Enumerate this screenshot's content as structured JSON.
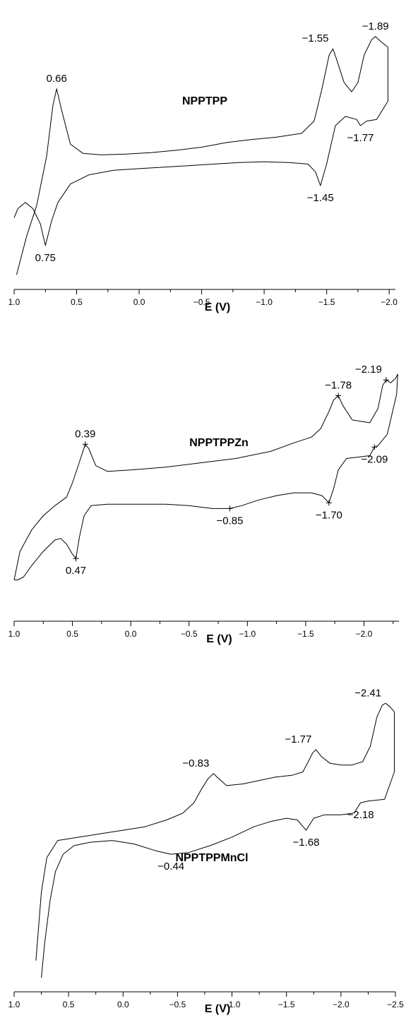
{
  "chart_data": [
    {
      "type": "line",
      "title": "NPPTPP",
      "xlabel": "E (V)",
      "ylabel": "",
      "xlim": [
        1.0,
        -2.05
      ],
      "x_reversed": true,
      "xticks": [
        1.0,
        0.5,
        0.0,
        -0.5,
        -1.0,
        -1.5,
        -2.0
      ],
      "xtick_labels": [
        "1.0",
        "0.5",
        "0.0",
        "−0.5",
        "−1.0",
        "−1.5",
        "−2.0"
      ],
      "show_markers": false,
      "series": [
        {
          "values": [
            [
              0.98,
              -0.55
            ],
            [
              0.9,
              -0.3
            ],
            [
              0.82,
              -0.1
            ],
            [
              0.74,
              0.22
            ],
            [
              0.69,
              0.55
            ],
            [
              0.66,
              0.66
            ],
            [
              0.62,
              0.52
            ],
            [
              0.55,
              0.3
            ],
            [
              0.45,
              0.24
            ],
            [
              0.3,
              0.23
            ],
            [
              0.1,
              0.235
            ],
            [
              -0.1,
              0.245
            ],
            [
              -0.3,
              0.26
            ],
            [
              -0.5,
              0.28
            ],
            [
              -0.7,
              0.31
            ],
            [
              -0.9,
              0.33
            ],
            [
              -1.1,
              0.345
            ],
            [
              -1.3,
              0.37
            ],
            [
              -1.4,
              0.45
            ],
            [
              -1.46,
              0.65
            ],
            [
              -1.52,
              0.88
            ],
            [
              -1.55,
              0.92
            ],
            [
              -1.58,
              0.85
            ],
            [
              -1.64,
              0.7
            ],
            [
              -1.7,
              0.64
            ],
            [
              -1.75,
              0.7
            ],
            [
              -1.8,
              0.88
            ],
            [
              -1.86,
              0.98
            ],
            [
              -1.89,
              1.0
            ],
            [
              -1.93,
              0.97
            ],
            [
              -1.99,
              0.93
            ],
            [
              -1.99,
              0.58
            ],
            [
              -1.9,
              0.46
            ],
            [
              -1.82,
              0.45
            ],
            [
              -1.77,
              0.42
            ],
            [
              -1.74,
              0.46
            ],
            [
              -1.65,
              0.48
            ],
            [
              -1.57,
              0.42
            ],
            [
              -1.5,
              0.17
            ],
            [
              -1.45,
              0.03
            ],
            [
              -1.41,
              0.12
            ],
            [
              -1.35,
              0.17
            ],
            [
              -1.2,
              0.18
            ],
            [
              -1.0,
              0.185
            ],
            [
              -0.8,
              0.18
            ],
            [
              -0.6,
              0.17
            ],
            [
              -0.4,
              0.16
            ],
            [
              -0.2,
              0.15
            ],
            [
              0.0,
              0.14
            ],
            [
              0.2,
              0.13
            ],
            [
              0.4,
              0.1
            ],
            [
              0.55,
              0.04
            ],
            [
              0.65,
              -0.08
            ],
            [
              0.7,
              -0.2
            ],
            [
              0.75,
              -0.36
            ],
            [
              0.79,
              -0.22
            ],
            [
              0.85,
              -0.12
            ],
            [
              0.91,
              -0.08
            ],
            [
              0.97,
              -0.12
            ],
            [
              1.0,
              -0.18
            ]
          ]
        }
      ],
      "annotations": [
        {
          "text": "0.66",
          "x": 0.66,
          "y": 0.66,
          "anchor": "above"
        },
        {
          "text": "0.75",
          "x": 0.75,
          "y": -0.36,
          "anchor": "below"
        },
        {
          "text": "−1.55",
          "x": -1.55,
          "y": 0.92,
          "anchor": "above-left"
        },
        {
          "text": "−1.89",
          "x": -1.89,
          "y": 1.0,
          "anchor": "above"
        },
        {
          "text": "−1.77",
          "x": -1.77,
          "y": 0.42,
          "anchor": "below"
        },
        {
          "text": "−1.45",
          "x": -1.45,
          "y": 0.03,
          "anchor": "below"
        }
      ]
    },
    {
      "type": "line",
      "title": "NPPTPPZn",
      "xlabel": "E (V)",
      "ylabel": "",
      "xlim": [
        1.0,
        -2.3
      ],
      "x_reversed": true,
      "xticks": [
        1.0,
        0.5,
        0.0,
        -0.5,
        -1.0,
        -1.5,
        -2.0
      ],
      "xtick_labels": [
        "1.0",
        "0.5",
        "0.0",
        "−0.5",
        "−1.0",
        "−1.5",
        "−2.0"
      ],
      "show_markers": true,
      "series": [
        {
          "values": [
            [
              1.0,
              -0.4
            ],
            [
              0.95,
              -0.2
            ],
            [
              0.85,
              -0.05
            ],
            [
              0.75,
              0.05
            ],
            [
              0.65,
              0.12
            ],
            [
              0.55,
              0.18
            ],
            [
              0.5,
              0.28
            ],
            [
              0.45,
              0.4
            ],
            [
              0.39,
              0.55
            ],
            [
              0.36,
              0.52
            ],
            [
              0.3,
              0.4
            ],
            [
              0.2,
              0.36
            ],
            [
              0.0,
              0.37
            ],
            [
              -0.3,
              0.39
            ],
            [
              -0.6,
              0.42
            ],
            [
              -0.9,
              0.45
            ],
            [
              -1.2,
              0.5
            ],
            [
              -1.4,
              0.56
            ],
            [
              -1.55,
              0.6
            ],
            [
              -1.63,
              0.66
            ],
            [
              -1.7,
              0.78
            ],
            [
              -1.74,
              0.86
            ],
            [
              -1.78,
              0.89
            ],
            [
              -1.82,
              0.82
            ],
            [
              -1.9,
              0.72
            ],
            [
              -2.05,
              0.7
            ],
            [
              -2.12,
              0.8
            ],
            [
              -2.16,
              0.96
            ],
            [
              -2.19,
              1.0
            ],
            [
              -2.23,
              0.98
            ],
            [
              -2.27,
              1.01
            ],
            [
              -2.29,
              1.04
            ],
            [
              -2.28,
              0.9
            ],
            [
              -2.2,
              0.62
            ],
            [
              -2.12,
              0.54
            ],
            [
              -2.09,
              0.53
            ],
            [
              -2.05,
              0.47
            ],
            [
              -1.95,
              0.46
            ],
            [
              -1.85,
              0.45
            ],
            [
              -1.78,
              0.37
            ],
            [
              -1.74,
              0.24
            ],
            [
              -1.7,
              0.14
            ],
            [
              -1.64,
              0.19
            ],
            [
              -1.55,
              0.21
            ],
            [
              -1.4,
              0.21
            ],
            [
              -1.25,
              0.19
            ],
            [
              -1.1,
              0.16
            ],
            [
              -0.95,
              0.12
            ],
            [
              -0.85,
              0.1
            ],
            [
              -0.7,
              0.1
            ],
            [
              -0.5,
              0.12
            ],
            [
              -0.3,
              0.13
            ],
            [
              0.0,
              0.13
            ],
            [
              0.2,
              0.13
            ],
            [
              0.34,
              0.12
            ],
            [
              0.4,
              0.05
            ],
            [
              0.44,
              -0.1
            ],
            [
              0.47,
              -0.25
            ],
            [
              0.5,
              -0.22
            ],
            [
              0.55,
              -0.15
            ],
            [
              0.6,
              -0.11
            ],
            [
              0.65,
              -0.12
            ],
            [
              0.75,
              -0.2
            ],
            [
              0.85,
              -0.3
            ],
            [
              0.92,
              -0.38
            ],
            [
              0.97,
              -0.4
            ],
            [
              1.0,
              -0.4
            ]
          ]
        }
      ],
      "annotations": [
        {
          "text": "0.39",
          "x": 0.39,
          "y": 0.55,
          "anchor": "above"
        },
        {
          "text": "0.47",
          "x": 0.47,
          "y": -0.25,
          "anchor": "below"
        },
        {
          "text": "−1.78",
          "x": -1.78,
          "y": 0.89,
          "anchor": "above"
        },
        {
          "text": "−2.19",
          "x": -2.19,
          "y": 1.0,
          "anchor": "above-left"
        },
        {
          "text": "−2.09",
          "x": -2.09,
          "y": 0.53,
          "anchor": "below"
        },
        {
          "text": "−1.70",
          "x": -1.7,
          "y": 0.14,
          "anchor": "below"
        },
        {
          "text": "−0.85",
          "x": -0.85,
          "y": 0.1,
          "anchor": "below"
        }
      ]
    },
    {
      "type": "line",
      "title": "NPPTPPMnCl",
      "xlabel": "E (V)",
      "ylabel": "",
      "xlim": [
        1.0,
        -2.5
      ],
      "x_reversed": true,
      "xticks": [
        1.0,
        0.5,
        0.0,
        -0.5,
        -1.0,
        -1.5,
        -2.0,
        -2.5
      ],
      "xtick_labels": [
        "1.0",
        "0.5",
        "0.0",
        "−0.5",
        "−1.0",
        "−1.5",
        "−2.0",
        "−2.5"
      ],
      "show_markers": false,
      "series": [
        {
          "values": [
            [
              0.8,
              -0.5
            ],
            [
              0.75,
              -0.1
            ],
            [
              0.7,
              0.1
            ],
            [
              0.6,
              0.2
            ],
            [
              0.4,
              0.22
            ],
            [
              0.2,
              0.24
            ],
            [
              0.0,
              0.26
            ],
            [
              -0.2,
              0.28
            ],
            [
              -0.4,
              0.32
            ],
            [
              -0.55,
              0.36
            ],
            [
              -0.65,
              0.42
            ],
            [
              -0.72,
              0.5
            ],
            [
              -0.78,
              0.56
            ],
            [
              -0.83,
              0.59
            ],
            [
              -0.88,
              0.56
            ],
            [
              -0.95,
              0.52
            ],
            [
              -1.1,
              0.53
            ],
            [
              -1.25,
              0.55
            ],
            [
              -1.4,
              0.57
            ],
            [
              -1.55,
              0.58
            ],
            [
              -1.65,
              0.6
            ],
            [
              -1.7,
              0.66
            ],
            [
              -1.74,
              0.71
            ],
            [
              -1.77,
              0.73
            ],
            [
              -1.82,
              0.69
            ],
            [
              -1.9,
              0.65
            ],
            [
              -2.0,
              0.64
            ],
            [
              -2.1,
              0.64
            ],
            [
              -2.2,
              0.66
            ],
            [
              -2.27,
              0.75
            ],
            [
              -2.33,
              0.92
            ],
            [
              -2.38,
              0.99
            ],
            [
              -2.41,
              1.0
            ],
            [
              -2.45,
              0.98
            ],
            [
              -2.49,
              0.95
            ],
            [
              -2.49,
              0.6
            ],
            [
              -2.4,
              0.44
            ],
            [
              -2.25,
              0.43
            ],
            [
              -2.18,
              0.42
            ],
            [
              -2.12,
              0.36
            ],
            [
              -2.0,
              0.35
            ],
            [
              -1.85,
              0.35
            ],
            [
              -1.75,
              0.33
            ],
            [
              -1.7,
              0.28
            ],
            [
              -1.68,
              0.26
            ],
            [
              -1.6,
              0.32
            ],
            [
              -1.5,
              0.33
            ],
            [
              -1.35,
              0.31
            ],
            [
              -1.2,
              0.28
            ],
            [
              -1.0,
              0.22
            ],
            [
              -0.8,
              0.17
            ],
            [
              -0.6,
              0.13
            ],
            [
              -0.44,
              0.12
            ],
            [
              -0.3,
              0.14
            ],
            [
              -0.1,
              0.18
            ],
            [
              0.1,
              0.2
            ],
            [
              0.3,
              0.19
            ],
            [
              0.45,
              0.17
            ],
            [
              0.55,
              0.12
            ],
            [
              0.62,
              0.02
            ],
            [
              0.67,
              -0.15
            ],
            [
              0.72,
              -0.4
            ],
            [
              0.75,
              -0.6
            ]
          ]
        }
      ],
      "annotations": [
        {
          "text": "−0.83",
          "x": -0.83,
          "y": 0.59,
          "anchor": "above-left"
        },
        {
          "text": "−1.77",
          "x": -1.77,
          "y": 0.73,
          "anchor": "above-left"
        },
        {
          "text": "−2.41",
          "x": -2.41,
          "y": 1.0,
          "anchor": "above-left"
        },
        {
          "text": "−2.18",
          "x": -2.18,
          "y": 0.42,
          "anchor": "below"
        },
        {
          "text": "−1.68",
          "x": -1.68,
          "y": 0.26,
          "anchor": "below"
        },
        {
          "text": "−0.44",
          "x": -0.44,
          "y": 0.12,
          "anchor": "below"
        }
      ]
    }
  ]
}
